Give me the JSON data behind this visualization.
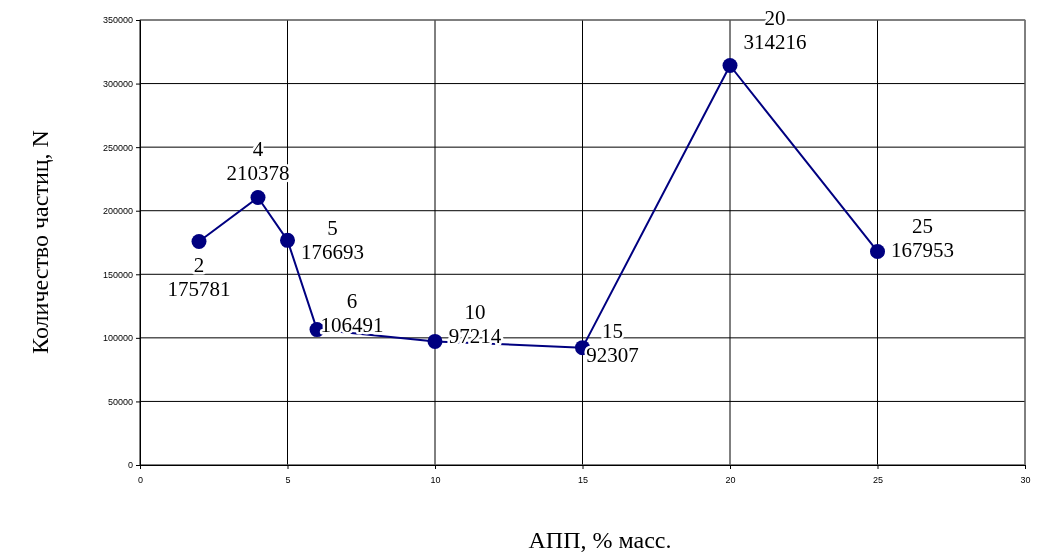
{
  "chart_data": {
    "type": "line",
    "xlabel": "АПП, % масс.",
    "ylabel": "Количество частиц, N",
    "x": [
      2,
      4,
      5,
      6,
      10,
      15,
      20,
      25
    ],
    "series": [
      {
        "color": "#000080",
        "values": [
          175781,
          210378,
          176693,
          106491,
          97214,
          92307,
          314216,
          167953
        ],
        "value_labels": [
          "2\n175781",
          "4\n210378",
          "5\n176693",
          "6\n106491",
          "10\n97214",
          "15\n92307",
          "20\n314216",
          "25\n167953"
        ]
      }
    ],
    "xlim": [
      0,
      30
    ],
    "xticks": [
      0,
      5,
      10,
      15,
      20,
      25,
      30
    ],
    "ylim": [
      0,
      350000
    ],
    "yticks": [
      0,
      50000,
      100000,
      150000,
      200000,
      250000,
      300000,
      350000
    ],
    "grid": true,
    "marker": "circle",
    "line_style": "solid"
  }
}
